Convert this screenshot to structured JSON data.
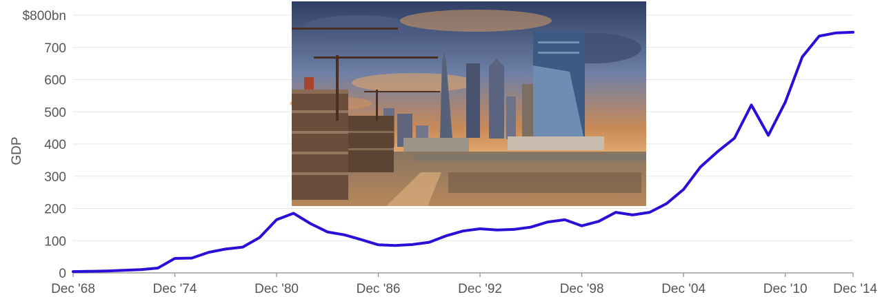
{
  "chart_data": {
    "type": "line",
    "title": "",
    "xlabel": "",
    "ylabel": "GDP",
    "ylim": [
      0,
      800
    ],
    "x_range": [
      "Dec 1968",
      "Dec 2014"
    ],
    "y_ticks": [
      {
        "value": 0,
        "label": "0"
      },
      {
        "value": 100,
        "label": "100"
      },
      {
        "value": 200,
        "label": "200"
      },
      {
        "value": 300,
        "label": "300"
      },
      {
        "value": 400,
        "label": "400"
      },
      {
        "value": 500,
        "label": "500"
      },
      {
        "value": 600,
        "label": "600"
      },
      {
        "value": 700,
        "label": "700"
      },
      {
        "value": 800,
        "label": "$800bn"
      }
    ],
    "x_ticks": [
      {
        "value": "1968-12",
        "label": "Dec '68"
      },
      {
        "value": "1974-12",
        "label": "Dec '74"
      },
      {
        "value": "1980-12",
        "label": "Dec '80"
      },
      {
        "value": "1986-12",
        "label": "Dec '86"
      },
      {
        "value": "1992-12",
        "label": "Dec '92"
      },
      {
        "value": "1998-12",
        "label": "Dec '98"
      },
      {
        "value": "2004-12",
        "label": "Dec '04"
      },
      {
        "value": "2010-12",
        "label": "Dec '10"
      },
      {
        "value": "2014-12",
        "label": "Dec '14"
      }
    ],
    "grid": true,
    "series": [
      {
        "color": "#2a0fd6",
        "points": [
          [
            "1968-12",
            4
          ],
          [
            "1969-12",
            5
          ],
          [
            "1970-12",
            6
          ],
          [
            "1971-12",
            8
          ],
          [
            "1972-12",
            10
          ],
          [
            "1973-12",
            15
          ],
          [
            "1974-12",
            45
          ],
          [
            "1975-12",
            46
          ],
          [
            "1976-12",
            64
          ],
          [
            "1977-12",
            74
          ],
          [
            "1978-12",
            80
          ],
          [
            "1979-12",
            110
          ],
          [
            "1980-12",
            165
          ],
          [
            "1981-12",
            185
          ],
          [
            "1982-12",
            153
          ],
          [
            "1983-12",
            127
          ],
          [
            "1984-12",
            118
          ],
          [
            "1985-12",
            103
          ],
          [
            "1986-12",
            87
          ],
          [
            "1987-12",
            85
          ],
          [
            "1988-12",
            88
          ],
          [
            "1989-12",
            95
          ],
          [
            "1990-12",
            115
          ],
          [
            "1991-12",
            130
          ],
          [
            "1992-12",
            137
          ],
          [
            "1993-12",
            133
          ],
          [
            "1994-12",
            135
          ],
          [
            "1995-12",
            142
          ],
          [
            "1996-12",
            158
          ],
          [
            "1997-12",
            165
          ],
          [
            "1998-12",
            146
          ],
          [
            "1999-12",
            160
          ],
          [
            "2000-12",
            188
          ],
          [
            "2001-12",
            180
          ],
          [
            "2002-12",
            188
          ],
          [
            "2003-12",
            215
          ],
          [
            "2004-12",
            259
          ],
          [
            "2005-12",
            329
          ],
          [
            "2006-12",
            376
          ],
          [
            "2007-12",
            418
          ],
          [
            "2008-12",
            521
          ],
          [
            "2009-12",
            427
          ],
          [
            "2010-12",
            530
          ],
          [
            "2011-12",
            670
          ],
          [
            "2012-12",
            735
          ],
          [
            "2013-12",
            745
          ],
          [
            "2014-12",
            747
          ]
        ]
      }
    ]
  },
  "photo": {
    "subject": "city skyline with construction cranes and skyscrapers at sunset",
    "sky_colors": [
      "#2f3f63",
      "#6e7fa6",
      "#c98a58",
      "#e8b275"
    ],
    "ground_color": "#b6875a"
  }
}
